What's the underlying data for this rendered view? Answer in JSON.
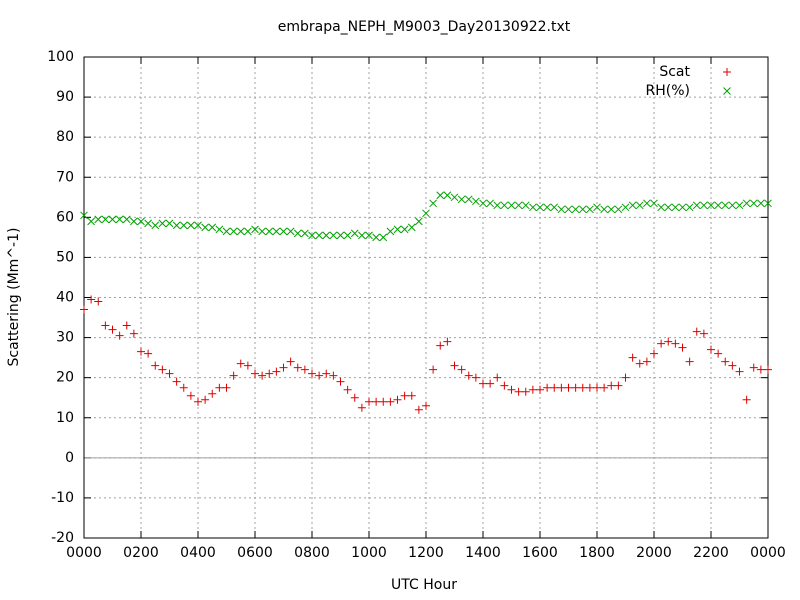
{
  "chart_data": {
    "type": "scatter",
    "title": "embrapa_NEPH_M9003_Day20130922.txt",
    "x_label": "UTC Hour",
    "y_label": "Scattering (Mm^-1)",
    "xlim": [
      0,
      24
    ],
    "ylim": [
      -20,
      100
    ],
    "xticks": [
      {
        "value": 0,
        "label": "0000"
      },
      {
        "value": 2,
        "label": "0200"
      },
      {
        "value": 4,
        "label": "0400"
      },
      {
        "value": 6,
        "label": "0600"
      },
      {
        "value": 8,
        "label": "0800"
      },
      {
        "value": 10,
        "label": "1000"
      },
      {
        "value": 12,
        "label": "1200"
      },
      {
        "value": 14,
        "label": "1400"
      },
      {
        "value": 16,
        "label": "1600"
      },
      {
        "value": 18,
        "label": "1800"
      },
      {
        "value": 20,
        "label": "2000"
      },
      {
        "value": 22,
        "label": "2200"
      },
      {
        "value": 24,
        "label": "0000"
      }
    ],
    "yticks": [
      -20,
      -10,
      0,
      10,
      20,
      30,
      40,
      50,
      60,
      70,
      80,
      90,
      100
    ],
    "grid": true,
    "zero_line": true,
    "legend": "top-right",
    "x": [
      0,
      0.25,
      0.5,
      0.75,
      1,
      1.25,
      1.5,
      1.75,
      2,
      2.25,
      2.5,
      2.75,
      3,
      3.25,
      3.5,
      3.75,
      4,
      4.25,
      4.5,
      4.75,
      5,
      5.25,
      5.5,
      5.75,
      6,
      6.25,
      6.5,
      6.75,
      7,
      7.25,
      7.5,
      7.75,
      8,
      8.25,
      8.5,
      8.75,
      9,
      9.25,
      9.5,
      9.75,
      10,
      10.25,
      10.5,
      10.75,
      11,
      11.25,
      11.5,
      11.75,
      12,
      12.25,
      12.5,
      12.75,
      13,
      13.25,
      13.5,
      13.75,
      14,
      14.25,
      14.5,
      14.75,
      15,
      15.25,
      15.5,
      15.75,
      16,
      16.25,
      16.5,
      16.75,
      17,
      17.25,
      17.5,
      17.75,
      18,
      18.25,
      18.5,
      18.75,
      19,
      19.25,
      19.5,
      19.75,
      20,
      20.25,
      20.5,
      20.75,
      21,
      21.25,
      21.5,
      21.75,
      22,
      22.25,
      22.5,
      22.75,
      23,
      23.25,
      23.5,
      23.75,
      24
    ],
    "series": [
      {
        "name": "Scat",
        "color": "#dd0000",
        "marker": "plus",
        "values": [
          37,
          39.5,
          39,
          33,
          32,
          30.5,
          33,
          31,
          26.5,
          26,
          23,
          22,
          21,
          19,
          17.5,
          15.5,
          14,
          14.5,
          16,
          17.5,
          17.5,
          20.5,
          23.5,
          23,
          21,
          20.5,
          21,
          21.5,
          22.5,
          24,
          22.5,
          22,
          21,
          20.5,
          21,
          20.5,
          19,
          17,
          15,
          12.5,
          14,
          14,
          14,
          14,
          14.5,
          15.5,
          15.5,
          12,
          13,
          22,
          28,
          29,
          23,
          22,
          20.5,
          20,
          18.5,
          18.5,
          20,
          18,
          17,
          16.5,
          16.5,
          17,
          17,
          17.5,
          17.5,
          17.5,
          17.5,
          17.5,
          17.5,
          17.5,
          17.5,
          17.5,
          18,
          18,
          20,
          25,
          23.5,
          24,
          26,
          28.5,
          29,
          28.5,
          27.5,
          24,
          31.5,
          31,
          27,
          26,
          24,
          23,
          21.5,
          14.5,
          22.5,
          22,
          22
        ]
      },
      {
        "name": "RH(%)",
        "color": "#00a000",
        "marker": "cross",
        "values": [
          60.5,
          59,
          59.5,
          59.5,
          59.5,
          59.5,
          59.5,
          59,
          59,
          58.5,
          58,
          58.5,
          58.5,
          58,
          58,
          58,
          58,
          57.5,
          57.5,
          57,
          56.5,
          56.5,
          56.5,
          56.5,
          57,
          56.5,
          56.5,
          56.5,
          56.5,
          56.5,
          56,
          56,
          55.5,
          55.5,
          55.5,
          55.5,
          55.5,
          55.5,
          56,
          55.5,
          55.5,
          55,
          55,
          56.5,
          57,
          57,
          57.5,
          59,
          61,
          63.5,
          65.5,
          65.5,
          65,
          64.5,
          64.5,
          64,
          63.5,
          63.5,
          63,
          63,
          63,
          63,
          63,
          62.5,
          62.5,
          62.5,
          62.5,
          62,
          62,
          62,
          62,
          62,
          62.5,
          62,
          62,
          62,
          62.5,
          63,
          63,
          63.5,
          63.5,
          62.5,
          62.5,
          62.5,
          62.5,
          62.5,
          63,
          63,
          63,
          63,
          63,
          63,
          63,
          63.5,
          63.5,
          63.5,
          63.5
        ]
      }
    ]
  }
}
